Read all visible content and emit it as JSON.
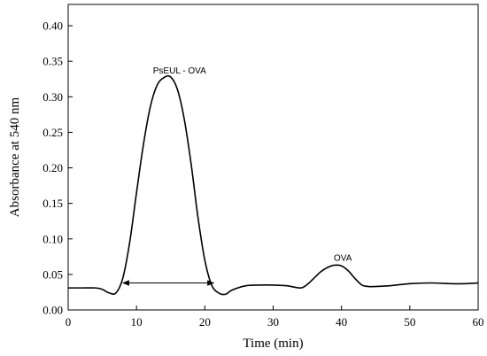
{
  "chart_data": {
    "type": "line",
    "xlabel": "Time (min)",
    "ylabel": "Absorbance at 540 nm",
    "xlim": [
      0,
      60
    ],
    "ylim": [
      0.0,
      0.43
    ],
    "x_ticks": [
      "0",
      "10",
      "20",
      "30",
      "40",
      "50",
      "60"
    ],
    "y_ticks": [
      "0.00",
      "0.05",
      "0.10",
      "0.15",
      "0.20",
      "0.25",
      "0.30",
      "0.35",
      "0.40"
    ],
    "grid": false,
    "series": [
      {
        "x": [
          0,
          2,
          4,
          5,
          6,
          7,
          8,
          9,
          10,
          11,
          12,
          13,
          14,
          15,
          16,
          17,
          18,
          19,
          20,
          21,
          22,
          23,
          24,
          26,
          28,
          30,
          32,
          34,
          35,
          36,
          37,
          38,
          39,
          40,
          41,
          42,
          43,
          44,
          45,
          47,
          50,
          53,
          56,
          58,
          60
        ],
        "y": [
          0.031,
          0.031,
          0.031,
          0.029,
          0.024,
          0.024,
          0.045,
          0.095,
          0.165,
          0.232,
          0.285,
          0.316,
          0.327,
          0.328,
          0.31,
          0.268,
          0.205,
          0.13,
          0.07,
          0.035,
          0.024,
          0.022,
          0.028,
          0.034,
          0.035,
          0.035,
          0.034,
          0.031,
          0.036,
          0.045,
          0.054,
          0.06,
          0.063,
          0.062,
          0.055,
          0.044,
          0.035,
          0.033,
          0.033,
          0.034,
          0.037,
          0.038,
          0.037,
          0.037,
          0.038
        ]
      }
    ],
    "annotations": [
      {
        "text": "PsEUL - OVA",
        "x": 16.3,
        "y": 0.333
      },
      {
        "text": "OVA",
        "x": 40.2,
        "y": 0.069
      }
    ],
    "arrow": {
      "x_start": 8.0,
      "x_end": 21.3,
      "y": 0.038
    }
  }
}
